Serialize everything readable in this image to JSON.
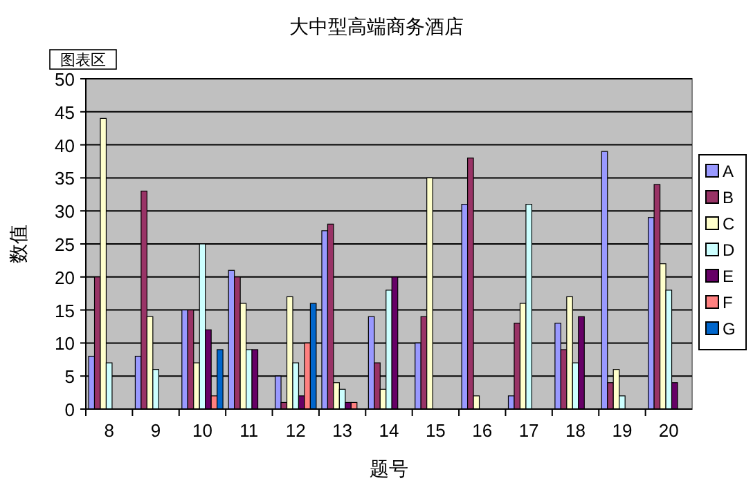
{
  "chart_data": {
    "type": "bar",
    "title": "大中型高端商务酒店",
    "xlabel": "题号",
    "ylabel": "数值",
    "annotations": [
      "图表区"
    ],
    "categories": [
      "8",
      "9",
      "10",
      "11",
      "12",
      "13",
      "14",
      "15",
      "16",
      "17",
      "18",
      "19",
      "20"
    ],
    "series": [
      {
        "name": "A",
        "color": "#9999ff",
        "values": [
          8,
          8,
          15,
          21,
          5,
          27,
          14,
          10,
          31,
          2,
          13,
          39,
          29
        ]
      },
      {
        "name": "B",
        "color": "#993366",
        "values": [
          20,
          33,
          15,
          20,
          1,
          28,
          7,
          14,
          38,
          13,
          9,
          4,
          34
        ]
      },
      {
        "name": "C",
        "color": "#ffffcc",
        "values": [
          44,
          14,
          7,
          16,
          17,
          4,
          3,
          35,
          2,
          16,
          17,
          6,
          22
        ]
      },
      {
        "name": "D",
        "color": "#ccffff",
        "values": [
          7,
          6,
          25,
          9,
          7,
          3,
          18,
          null,
          null,
          31,
          7,
          2,
          18
        ]
      },
      {
        "name": "E",
        "color": "#660066",
        "values": [
          null,
          null,
          12,
          9,
          2,
          1,
          20,
          null,
          null,
          null,
          14,
          null,
          4
        ]
      },
      {
        "name": "F",
        "color": "#ff8080",
        "values": [
          null,
          null,
          2,
          null,
          10,
          1,
          null,
          null,
          null,
          null,
          null,
          null,
          null
        ]
      },
      {
        "name": "G",
        "color": "#0066cc",
        "values": [
          null,
          null,
          9,
          null,
          16,
          null,
          null,
          null,
          null,
          null,
          null,
          null,
          null
        ]
      }
    ],
    "ylim": [
      0,
      50
    ],
    "yticks": [
      0,
      5,
      10,
      15,
      20,
      25,
      30,
      35,
      40,
      45,
      50
    ],
    "grid": "y",
    "legend": "right"
  }
}
